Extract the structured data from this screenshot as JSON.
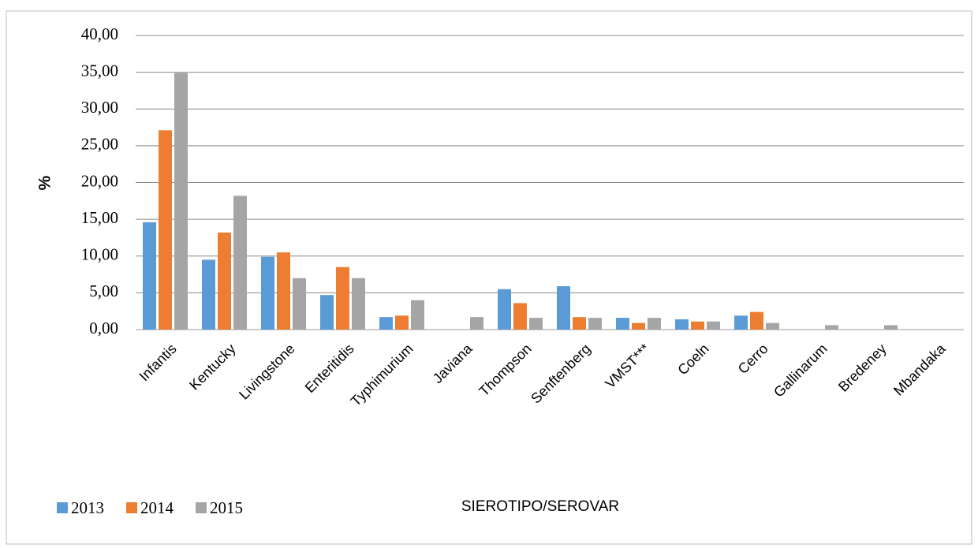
{
  "chart_data": {
    "type": "bar",
    "y_label": "%",
    "x_label": "SIEROTIPO/SEROVAR",
    "categories": [
      "Infantis",
      "Kentucky",
      "Livingstone",
      "Enteritidis",
      "Typhimurium",
      "Javiana",
      "Thompson",
      "Senftenberg",
      "VMST***",
      "Coeln",
      "Cerro",
      "Gallinarum",
      "Bredeney",
      "Mbandaka"
    ],
    "series": [
      {
        "name": "2013",
        "color": "#5b9bd5",
        "values": [
          14.6,
          9.5,
          9.9,
          4.7,
          1.7,
          0,
          5.5,
          5.9,
          1.6,
          1.4,
          1.9,
          0,
          0,
          0
        ]
      },
      {
        "name": "2014",
        "color": "#ed7d31",
        "values": [
          27.1,
          13.2,
          10.5,
          8.5,
          1.9,
          0,
          3.6,
          1.7,
          0.9,
          1.1,
          2.4,
          0,
          0,
          0
        ]
      },
      {
        "name": "2015",
        "color": "#a5a5a5",
        "values": [
          34.9,
          18.2,
          7.0,
          7.0,
          4.0,
          1.7,
          1.6,
          1.6,
          1.6,
          1.1,
          0.9,
          0.6,
          0.6,
          0
        ]
      }
    ],
    "ylim": [
      0,
      40
    ],
    "yticks": [
      {
        "value": 0,
        "label": "0,00"
      },
      {
        "value": 5,
        "label": "5,00"
      },
      {
        "value": 10,
        "label": "10,00"
      },
      {
        "value": 15,
        "label": "15,00"
      },
      {
        "value": 20,
        "label": "20,00"
      },
      {
        "value": 25,
        "label": "25,00"
      },
      {
        "value": 30,
        "label": "30,00"
      },
      {
        "value": 35,
        "label": "35,00"
      },
      {
        "value": 40,
        "label": "40,00"
      }
    ],
    "grid": true,
    "legend": "bottom-left"
  }
}
